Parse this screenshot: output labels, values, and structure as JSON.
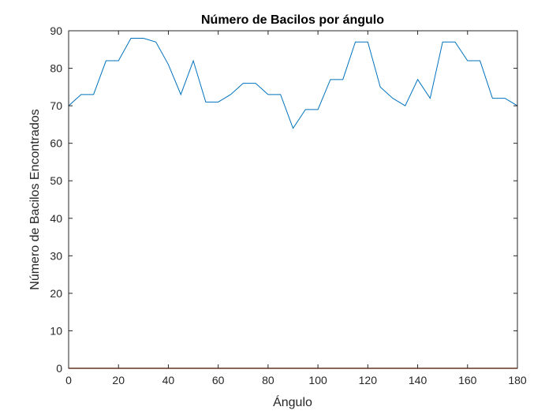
{
  "chart_data": {
    "type": "line",
    "title": "Número de Bacilos por ángulo",
    "xlabel": "Ángulo",
    "ylabel": "Número de Bacilos Encontrados",
    "xlim": [
      0,
      180
    ],
    "ylim": [
      0,
      90
    ],
    "xticks": [
      0,
      20,
      40,
      60,
      80,
      100,
      120,
      140,
      160,
      180
    ],
    "yticks": [
      0,
      10,
      20,
      30,
      40,
      50,
      60,
      70,
      80,
      90
    ],
    "grid": false,
    "series": [
      {
        "color": "#0072BD",
        "x": [
          0,
          5,
          10,
          15,
          20,
          25,
          30,
          35,
          40,
          45,
          50,
          55,
          60,
          65,
          70,
          75,
          80,
          85,
          90,
          95,
          100,
          105,
          110,
          115,
          120,
          125,
          130,
          135,
          140,
          145,
          150,
          155,
          160,
          165,
          170,
          175,
          180
        ],
        "y": [
          70,
          73,
          73,
          82,
          82,
          88,
          88,
          87,
          81,
          73,
          82,
          71,
          71,
          73,
          76,
          76,
          73,
          73,
          64,
          69,
          69,
          77,
          77,
          87,
          87,
          75,
          72,
          70,
          77,
          72,
          87,
          87,
          82,
          82,
          72,
          72,
          70
        ]
      },
      {
        "color": "#D95319",
        "x": [
          0,
          180
        ],
        "y": [
          0,
          0
        ]
      }
    ]
  }
}
